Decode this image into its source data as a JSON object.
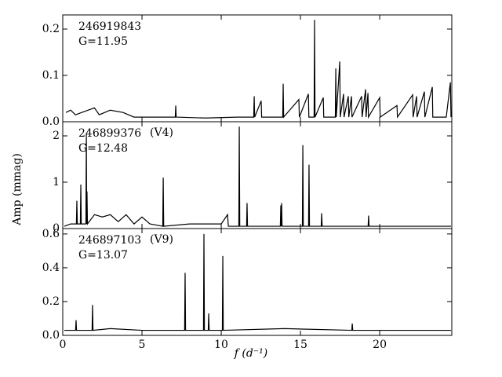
{
  "ylabel": "Amp (mmag)",
  "xlabel": "f (d⁻¹)",
  "chart_data": [
    {
      "type": "line",
      "name": "246919843",
      "magnitude": "G=11.95",
      "color": "#000000",
      "xlim": [
        0,
        24.55
      ],
      "xticks": [
        0,
        5,
        10,
        15,
        20
      ],
      "ylim": [
        0,
        0.2305
      ],
      "yticks": [
        {
          "value": 0,
          "label": "0.0"
        },
        0.1,
        0.2
      ],
      "x": [
        0.2,
        0.5,
        0.8,
        1.2,
        2.0,
        2.3,
        3.0,
        3.8,
        4.5,
        6.0,
        7.1,
        7.13,
        7.16,
        9,
        11,
        12.05,
        12.08,
        12.11,
        12.52,
        12.55,
        13.88,
        13.91,
        13.94,
        14.9,
        14.93,
        15.5,
        15.53,
        15.86,
        15.89,
        15.92,
        16.44,
        16.47,
        17.2,
        17.23,
        17.26,
        17.48,
        17.51,
        17.72,
        17.75,
        18.02,
        18.05,
        18.22,
        18.25,
        18.86,
        18.89,
        19.11,
        19.14,
        19.26,
        19.29,
        20.0,
        20.03,
        21.09,
        21.12,
        22.08,
        22.11,
        22.33,
        22.36,
        22.82,
        22.85,
        23.32,
        23.35,
        24.2,
        24.46,
        24.5
      ],
      "values": [
        0.02,
        0.025,
        0.015,
        0.02,
        0.03,
        0.015,
        0.025,
        0.02,
        0.01,
        0.01,
        0.01,
        0.035,
        0.01,
        0.008,
        0.01,
        0.01,
        0.055,
        0.01,
        0.045,
        0.01,
        0.01,
        0.082,
        0.01,
        0.048,
        0.01,
        0.06,
        0.01,
        0.01,
        0.22,
        0.01,
        0.052,
        0.01,
        0.01,
        0.115,
        0.01,
        0.13,
        0.01,
        0.06,
        0.01,
        0.055,
        0.01,
        0.055,
        0.01,
        0.055,
        0.01,
        0.07,
        0.01,
        0.062,
        0.01,
        0.052,
        0.01,
        0.035,
        0.01,
        0.058,
        0.01,
        0.055,
        0.01,
        0.065,
        0.01,
        0.075,
        0.01,
        0.01,
        0.085,
        0.01
      ]
    },
    {
      "type": "line",
      "name": "246899376",
      "tag": "(V4)",
      "magnitude": "G=12.48",
      "color": "#000000",
      "xlim": [
        0,
        24.55
      ],
      "xticks": [
        0,
        5,
        10,
        15,
        20
      ],
      "ylim": [
        0,
        2.305
      ],
      "yticks": [
        0,
        1,
        2
      ],
      "x": [
        0.1,
        0.5,
        0.86,
        0.89,
        0.92,
        1.11,
        1.14,
        1.17,
        1.46,
        1.49,
        1.51,
        1.53,
        1.56,
        2.0,
        2.5,
        3.0,
        3.5,
        4.0,
        4.5,
        5.0,
        5.5,
        6.31,
        6.34,
        6.37,
        8.0,
        10.0,
        10.4,
        10.45,
        11.11,
        11.14,
        11.17,
        11.6,
        11.63,
        11.66,
        13.73,
        13.76,
        13.79,
        13.81,
        13.84,
        15.12,
        15.15,
        15.18,
        15.51,
        15.54,
        15.57,
        16.31,
        16.34,
        16.37,
        19.27,
        19.3,
        19.33,
        22.0,
        24.5
      ],
      "values": [
        0.05,
        0.1,
        0.1,
        0.6,
        0.1,
        0.1,
        0.95,
        0.1,
        0.1,
        2.05,
        0.1,
        0.8,
        0.1,
        0.3,
        0.25,
        0.3,
        0.15,
        0.3,
        0.1,
        0.25,
        0.1,
        0.05,
        1.1,
        0.05,
        0.1,
        0.1,
        0.3,
        0.05,
        0.05,
        2.2,
        0.05,
        0.05,
        0.55,
        0.05,
        0.05,
        0.5,
        0.05,
        0.55,
        0.05,
        0.05,
        1.8,
        0.05,
        0.05,
        1.38,
        0.05,
        0.05,
        0.33,
        0.05,
        0.05,
        0.28,
        0.05,
        0.05,
        0.05
      ]
    },
    {
      "type": "line",
      "name": "246897103",
      "tag": "(V9)",
      "magnitude": "G=13.07",
      "color": "#000000",
      "xlim": [
        0,
        24.55
      ],
      "xticks": [
        0,
        5,
        10,
        15,
        20
      ],
      "ylim": [
        0,
        0.632
      ],
      "yticks": [
        {
          "value": 0,
          "label": "0.0"
        },
        0.2,
        0.4,
        0.6
      ],
      "x": [
        0.1,
        0.81,
        0.84,
        0.87,
        1.85,
        1.88,
        1.91,
        3.0,
        5.0,
        7.69,
        7.72,
        7.75,
        8.88,
        8.91,
        8.94,
        9.18,
        9.21,
        9.24,
        10.07,
        10.1,
        10.13,
        14.0,
        18.24,
        18.27,
        18.3,
        24.5
      ],
      "values": [
        0.03,
        0.03,
        0.09,
        0.03,
        0.03,
        0.18,
        0.03,
        0.04,
        0.03,
        0.03,
        0.37,
        0.03,
        0.03,
        0.6,
        0.03,
        0.03,
        0.13,
        0.03,
        0.03,
        0.47,
        0.03,
        0.04,
        0.03,
        0.07,
        0.03,
        0.03
      ]
    }
  ]
}
